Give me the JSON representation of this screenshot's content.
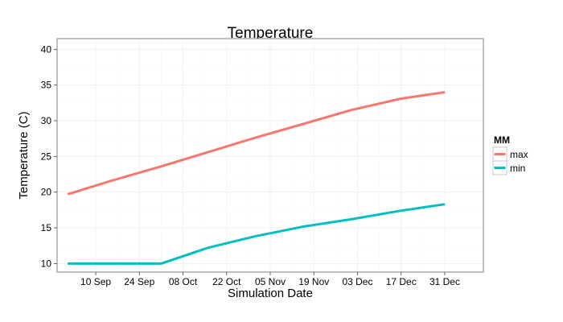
{
  "chart_data": {
    "type": "line",
    "title": "Temperature",
    "xlabel": "Simulation Date",
    "ylabel": "Temperature (C)",
    "x_tick_labels": [
      "10 Sep",
      "24 Sep",
      "08 Oct",
      "22 Oct",
      "05 Nov",
      "19 Nov",
      "03 Dec",
      "17 Dec",
      "31 Dec"
    ],
    "x_tick_days": [
      10,
      24,
      38,
      52,
      66,
      80,
      94,
      108,
      122
    ],
    "y_ticks": [
      10,
      15,
      20,
      25,
      30,
      35,
      40
    ],
    "ylim": [
      8.8,
      41.5
    ],
    "xlim_days": [
      -2.4,
      134.4
    ],
    "grid": true,
    "legend_title": "MM",
    "legend_position": "right",
    "series": [
      {
        "name": "max",
        "color": "#F8766D",
        "x_days": [
          1,
          15,
          31,
          46,
          61,
          77,
          92,
          108,
          122
        ],
        "values": [
          19.7,
          21.6,
          23.6,
          25.6,
          27.6,
          29.6,
          31.5,
          33.1,
          34.0
        ]
      },
      {
        "name": "min",
        "color": "#00BFC4",
        "x_days": [
          1,
          25,
          31,
          46,
          61,
          77,
          92,
          108,
          122
        ],
        "values": [
          10.0,
          10.0,
          10.0,
          12.2,
          13.8,
          15.2,
          16.2,
          17.4,
          18.3
        ]
      }
    ]
  }
}
